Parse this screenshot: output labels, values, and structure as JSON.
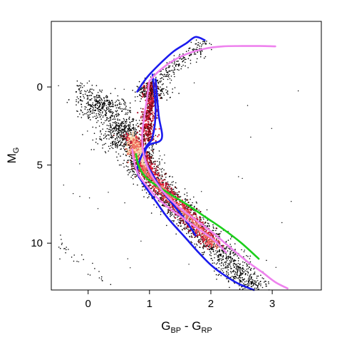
{
  "chart_data": {
    "type": "scatter",
    "title": "",
    "xlabel": {
      "main": "G",
      "sub1": "BP",
      "sep": " - ",
      "main2": "G",
      "sub2": "RP"
    },
    "ylabel": {
      "main": "M",
      "sub": "G"
    },
    "xlim": [
      -0.6,
      3.8
    ],
    "ylim": [
      13.0,
      -4.2
    ],
    "y_inverted": true,
    "grid": false,
    "x_ticks": [
      0,
      1,
      2,
      3
    ],
    "x_tick_labels": [
      "0",
      "1",
      "2",
      "3"
    ],
    "y_ticks": [
      0,
      5,
      10
    ],
    "y_tick_labels": [
      "0",
      "5",
      "10"
    ],
    "point_color": "#000000",
    "density_colors": [
      "#5a0a0a",
      "#a8102a",
      "#e0203a",
      "#f07060",
      "#fbd7a8"
    ],
    "series": [
      {
        "color": "#1a1aee",
        "x": [
          0.8,
          0.9,
          1.0,
          1.2,
          1.4,
          1.6,
          1.75,
          1.9
        ],
        "y": [
          0.3,
          -0.3,
          -0.8,
          -1.6,
          -2.3,
          -2.8,
          -3.2,
          -3.0
        ]
      },
      {
        "color": "#1a1aee",
        "x": [
          1.05,
          1.1,
          1.05,
          0.95,
          0.85,
          0.8,
          0.9,
          1.1,
          1.3,
          1.55,
          1.8,
          2.0,
          2.2,
          2.45,
          2.7
        ],
        "y": [
          -0.8,
          1.5,
          3.2,
          3.8,
          4.6,
          5.4,
          6.2,
          7.3,
          8.4,
          9.5,
          10.6,
          11.4,
          12.0,
          12.6,
          13.0
        ]
      },
      {
        "color": "#1a1aee",
        "x": [
          1.1,
          1.15,
          1.2,
          1.0,
          0.92,
          0.95,
          1.05,
          1.2,
          1.4,
          1.6,
          1.75
        ],
        "y": [
          -0.5,
          1.8,
          3.3,
          3.7,
          4.2,
          4.9,
          5.6,
          6.6,
          7.6,
          8.6,
          9.5
        ]
      },
      {
        "color": "#1bcf1b",
        "x": [
          0.78,
          0.82,
          0.9,
          1.0,
          1.15,
          1.35,
          1.6,
          1.9,
          2.2,
          2.5,
          2.78
        ],
        "y": [
          4.3,
          5.0,
          5.6,
          6.0,
          6.4,
          6.9,
          7.5,
          8.3,
          9.1,
          10.0,
          11.0
        ]
      },
      {
        "color": "#ee82ee",
        "x": [
          0.72,
          0.75,
          0.82,
          0.95,
          1.1,
          1.3,
          1.55,
          1.8,
          2.05,
          2.25
        ],
        "y": [
          4.0,
          4.8,
          5.6,
          6.3,
          7.0,
          7.7,
          8.4,
          9.1,
          9.8,
          10.6
        ]
      },
      {
        "color": "#ee82ee",
        "x": [
          1.0,
          0.95,
          0.9,
          0.88,
          0.9,
          1.0,
          1.2,
          1.45,
          1.75,
          2.05,
          2.35,
          2.6,
          2.85,
          3.05,
          3.25
        ],
        "y": [
          -0.4,
          1.0,
          2.3,
          3.2,
          4.2,
          5.4,
          6.6,
          7.6,
          8.5,
          9.4,
          10.4,
          11.2,
          11.9,
          12.5,
          12.9
        ]
      },
      {
        "color": "#ee82ee",
        "x": [
          1.0,
          1.15,
          1.35,
          1.6,
          1.9,
          2.2,
          2.5,
          2.8,
          3.05
        ],
        "y": [
          -0.4,
          -1.0,
          -1.6,
          -2.1,
          -2.45,
          -2.6,
          -2.62,
          -2.62,
          -2.6
        ]
      }
    ]
  }
}
